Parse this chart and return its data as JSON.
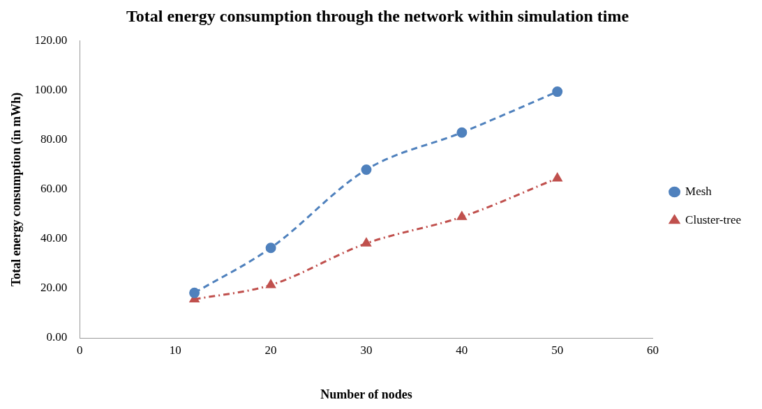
{
  "chart_data": {
    "type": "line",
    "title": "Total energy consumption through the network within simulation time",
    "xlabel": "Number of nodes",
    "ylabel": "Total energy consumption (in mWh)",
    "x": [
      12,
      20,
      30,
      40,
      50
    ],
    "series": [
      {
        "name": "Mesh",
        "color": "#4f81bd",
        "marker": "circle",
        "line_style": "dashed",
        "values": [
          18.2,
          36.4,
          68,
          83,
          99.5
        ]
      },
      {
        "name": "Cluster-tree",
        "color": "#c0504d",
        "marker": "triangle",
        "line_style": "dashdot",
        "values": [
          15.6,
          21.4,
          38.2,
          48.9,
          64.5
        ]
      }
    ],
    "xlim": [
      0,
      60
    ],
    "xticks": [
      0,
      10,
      20,
      30,
      40,
      50,
      60
    ],
    "ylim": [
      0,
      120
    ],
    "yticks": [
      {
        "value": 0,
        "label": "0.00"
      },
      {
        "value": 20,
        "label": "20.00"
      },
      {
        "value": 40,
        "label": "40.00"
      },
      {
        "value": 60,
        "label": "60.00"
      },
      {
        "value": 80,
        "label": "80.00"
      },
      {
        "value": 100,
        "label": "100.00"
      },
      {
        "value": 120,
        "label": "120.00"
      }
    ],
    "grid": false,
    "legend": "right"
  }
}
